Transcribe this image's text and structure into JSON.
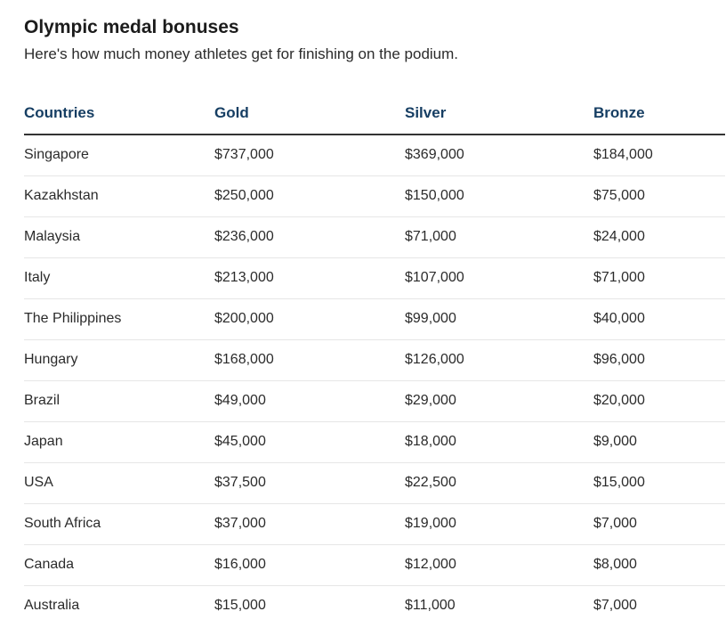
{
  "chart_data": {
    "type": "table",
    "title": "Olympic medal bonuses",
    "subtitle": "Here's how much money athletes get for finishing on the podium.",
    "columns": [
      "Countries",
      "Gold",
      "Silver",
      "Bronze"
    ],
    "rows": [
      [
        "Singapore",
        "$737,000",
        "$369,000",
        "$184,000"
      ],
      [
        "Kazakhstan",
        "$250,000",
        "$150,000",
        "$75,000"
      ],
      [
        "Malaysia",
        "$236,000",
        "$71,000",
        "$24,000"
      ],
      [
        "Italy",
        "$213,000",
        "$107,000",
        "$71,000"
      ],
      [
        "The Philippines",
        "$200,000",
        "$99,000",
        "$40,000"
      ],
      [
        "Hungary",
        "$168,000",
        "$126,000",
        "$96,000"
      ],
      [
        "Brazil",
        "$49,000",
        "$29,000",
        "$20,000"
      ],
      [
        "Japan",
        "$45,000",
        "$18,000",
        "$9,000"
      ],
      [
        "USA",
        "$37,500",
        "$22,500",
        "$15,000"
      ],
      [
        "South Africa",
        "$37,000",
        "$19,000",
        "$7,000"
      ],
      [
        "Canada",
        "$16,000",
        "$12,000",
        "$8,000"
      ],
      [
        "Australia",
        "$15,000",
        "$11,000",
        "$7,000"
      ]
    ]
  },
  "colors": {
    "header_text": "#163e63",
    "body_text": "#2b2b2b",
    "header_rule": "#333333",
    "row_rule": "#e6e6e6"
  }
}
